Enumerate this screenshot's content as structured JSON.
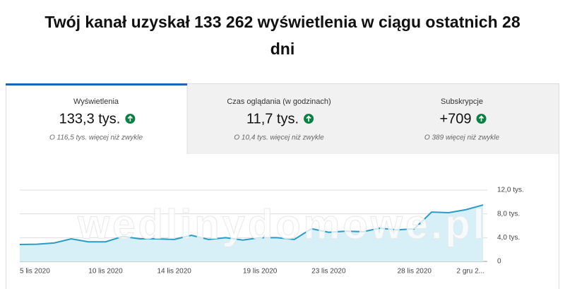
{
  "title": "Twój kanał uzyskał 133 262 wyświetlenia w ciągu ostatnich 28 dni",
  "tabs": [
    {
      "label": "Wyświetlenia",
      "value": "133,3 tys.",
      "comparison": "O 116,5 tys. więcej niż zwykle"
    },
    {
      "label": "Czas oglądania (w godzinach)",
      "value": "11,7 tys.",
      "comparison": "O 10,4 tys. więcej niż zwykle"
    },
    {
      "label": "Subskrypcje",
      "value": "+709",
      "comparison": "O 389 więcej niż zwykle"
    }
  ],
  "watermark": "wedlinydomowe.pl",
  "chart_data": {
    "type": "line",
    "area": true,
    "color": "#2a9cc6",
    "fill": "#d7eff7",
    "categories": [
      "5 lis 2020",
      null,
      null,
      null,
      null,
      "10 lis 2020",
      null,
      null,
      null,
      "14 lis 2020",
      null,
      null,
      null,
      null,
      "19 lis 2020",
      null,
      null,
      null,
      "23 lis 2020",
      null,
      null,
      null,
      null,
      "28 lis 2020",
      null,
      null,
      null,
      "2 gru 2..."
    ],
    "values": [
      2850,
      2900,
      3100,
      3800,
      3300,
      3300,
      4200,
      3800,
      3800,
      3700,
      4400,
      3700,
      4000,
      3600,
      4000,
      4000,
      3700,
      5500,
      4900,
      5100,
      5000,
      5600,
      5300,
      5500,
      8300,
      8200,
      8700,
      9500
    ],
    "ylim": [
      0,
      12000
    ],
    "yticks": [
      0,
      {
        "value": 4000,
        "label": "4,0 tys."
      },
      {
        "value": 8000,
        "label": "8,0 tys."
      },
      {
        "value": 12000,
        "label": "12,0 tys."
      }
    ],
    "grid": true
  }
}
